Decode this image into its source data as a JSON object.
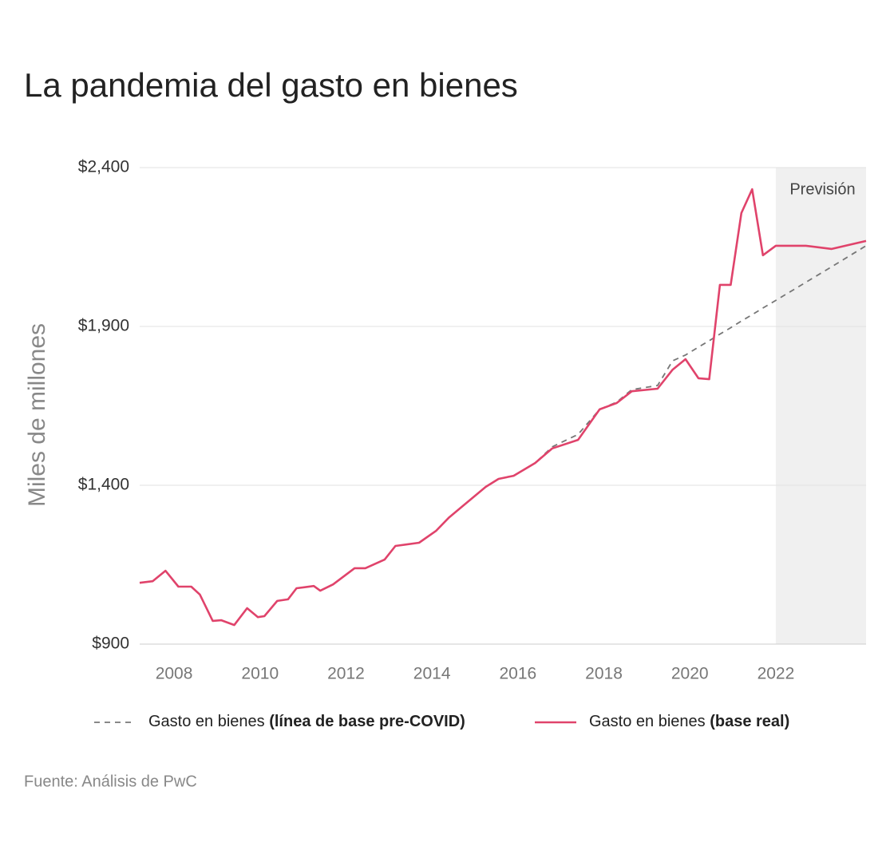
{
  "chart_data": {
    "type": "line",
    "title": "La pandemia del gasto en bienes",
    "y_label": "Miles de millones",
    "source": "Fuente: Análisis de PwC",
    "forecast_label": "Previsión",
    "forecast_start": 2022,
    "x": [
      2007.2,
      2007.5,
      2007.8,
      2008.1,
      2008.4,
      2008.6,
      2008.9,
      2009.1,
      2009.4,
      2009.7,
      2009.95,
      2010.1,
      2010.4,
      2010.65,
      2010.85,
      2011.25,
      2011.4,
      2011.7,
      2012.2,
      2012.45,
      2012.9,
      2013.15,
      2013.7,
      2014.1,
      2014.4,
      2015.25,
      2015.55,
      2015.9,
      2016.4,
      2016.8,
      2017.4,
      2017.9,
      2018.3,
      2018.65,
      2019.25,
      2019.6,
      2019.9,
      2020.2,
      2020.45,
      2020.7,
      2020.95,
      2021.2,
      2021.45,
      2021.7,
      2022.0,
      2022.7,
      2023.3,
      2024.1
    ],
    "series": [
      {
        "name": "Gasto en bienes (línea de base pre-COVID)",
        "color": "#777777",
        "dashed": true,
        "values": [
          1093,
          1098,
          1131,
          1081,
          1081,
          1056,
          973,
          975,
          960,
          1013,
          985,
          988,
          1036,
          1041,
          1076,
          1083,
          1068,
          1088,
          1139,
          1139,
          1166,
          1209,
          1219,
          1257,
          1299,
          1395,
          1420,
          1430,
          1470,
          1521,
          1560,
          1639,
          1662,
          1701,
          1714,
          1792,
          1810,
          1835,
          1855,
          1876,
          1896,
          1917,
          1937,
          1958,
          1982,
          2039,
          2088,
          2154
        ]
      },
      {
        "name": "Gasto en bienes (base real)",
        "color": "#e0436b",
        "dashed": false,
        "values": [
          1093,
          1098,
          1131,
          1081,
          1081,
          1056,
          973,
          975,
          960,
          1013,
          985,
          988,
          1036,
          1041,
          1076,
          1083,
          1068,
          1088,
          1139,
          1139,
          1166,
          1209,
          1219,
          1257,
          1299,
          1395,
          1420,
          1430,
          1470,
          1516,
          1543,
          1639,
          1659,
          1696,
          1704,
          1764,
          1797,
          1737,
          1734,
          2031,
          2031,
          2257,
          2332,
          2124,
          2154,
          2154,
          2144,
          2169
        ]
      }
    ],
    "xlim": [
      2007.2,
      2024.1
    ],
    "xticks": [
      2008,
      2010,
      2012,
      2014,
      2016,
      2018,
      2020,
      2022
    ],
    "ylim": [
      900,
      2400
    ],
    "yticks": [
      {
        "value": 900,
        "label": "$900"
      },
      {
        "value": 1400,
        "label": "$1,400"
      },
      {
        "value": 1900,
        "label": "$1,900"
      },
      {
        "value": 2400,
        "label": "$2,400"
      }
    ],
    "grid": true
  }
}
